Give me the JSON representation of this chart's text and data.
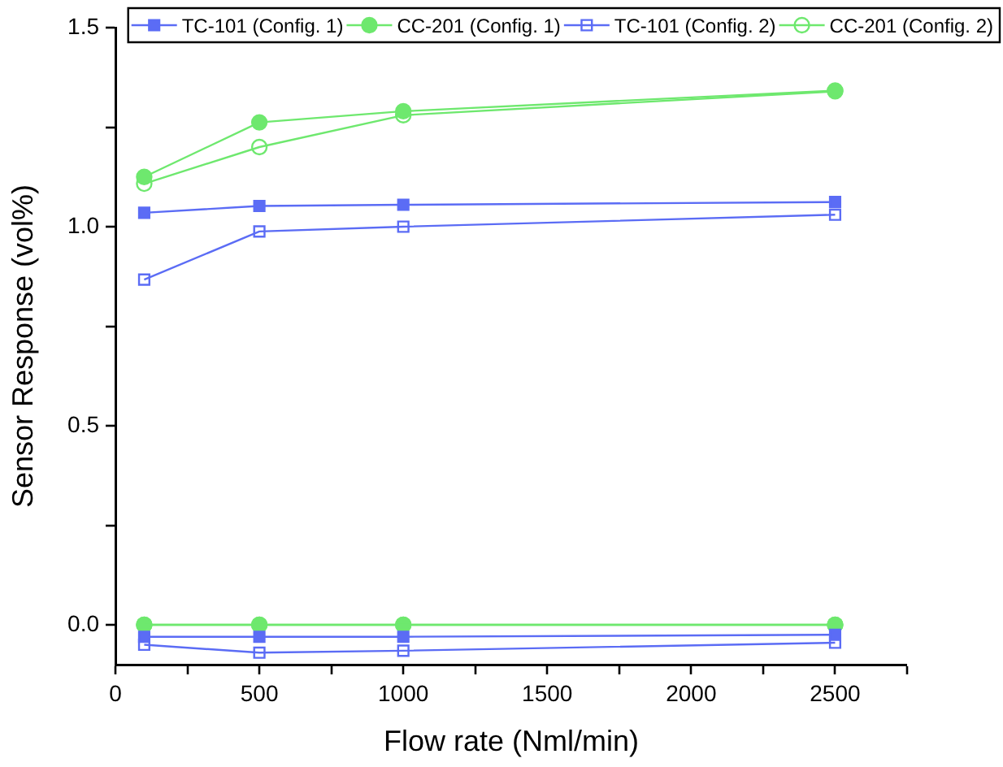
{
  "chart_data": {
    "type": "line",
    "xlabel": "Flow rate (Nml/min)",
    "ylabel": "Sensor Response (vol%)",
    "xlim": [
      0,
      2750
    ],
    "xticks": [
      0,
      {
        "value": 250,
        "label": null
      },
      500,
      {
        "value": 750,
        "label": null
      },
      1000,
      {
        "value": 1250,
        "label": null
      },
      1500,
      {
        "value": 1750,
        "label": null
      },
      2000,
      {
        "value": 2250,
        "label": null
      },
      2500,
      {
        "value": 2750,
        "label": null
      }
    ],
    "ylim": [
      -0.1,
      1.5
    ],
    "yticks": [
      {
        "value": 0,
        "label": "0.0"
      },
      {
        "value": 0.25,
        "label": null
      },
      {
        "value": 0.5,
        "label": "0.5"
      },
      {
        "value": 0.75,
        "label": null
      },
      {
        "value": 1,
        "label": "1.0"
      },
      {
        "value": 1.25,
        "label": null
      },
      {
        "value": 1.5,
        "label": "1.5"
      }
    ],
    "x": [
      100,
      500,
      1000,
      2500
    ],
    "grid": false,
    "legend": "top right",
    "line_style": "solid",
    "series": [
      {
        "name": "TC-101 (Config. 1)",
        "color": "#5b6cf5",
        "marker": "square",
        "values": [
          1.035,
          1.052,
          1.055,
          1.062
        ]
      },
      {
        "name": "CC-201 (Config. 1)",
        "color": "#6ee86e",
        "marker": "circle",
        "values": [
          1.125,
          1.262,
          1.29,
          1.342
        ]
      },
      {
        "name": "TC-101 (Config. 2)",
        "color": "#5b6cf5",
        "marker": "square_open",
        "values": [
          0.867,
          0.988,
          1.0,
          1.03
        ]
      },
      {
        "name": "CC-201 (Config. 2)",
        "color": "#6ee86e",
        "marker": "circle_open",
        "values": [
          1.108,
          1.2,
          1.28,
          1.34
        ]
      },
      {
        "color": "#5b6cf5",
        "marker": "square",
        "values": [
          -0.03,
          -0.03,
          -0.03,
          -0.025
        ]
      },
      {
        "color": "#5b6cf5",
        "marker": "square_open",
        "values": [
          -0.05,
          -0.07,
          -0.065,
          -0.045
        ]
      },
      {
        "color": "#6ee86e",
        "marker": "circle_open",
        "values": [
          0,
          0,
          0,
          0
        ]
      },
      {
        "color": "#6ee86e",
        "marker": "circle",
        "values": [
          0,
          0,
          0,
          0
        ]
      }
    ]
  }
}
